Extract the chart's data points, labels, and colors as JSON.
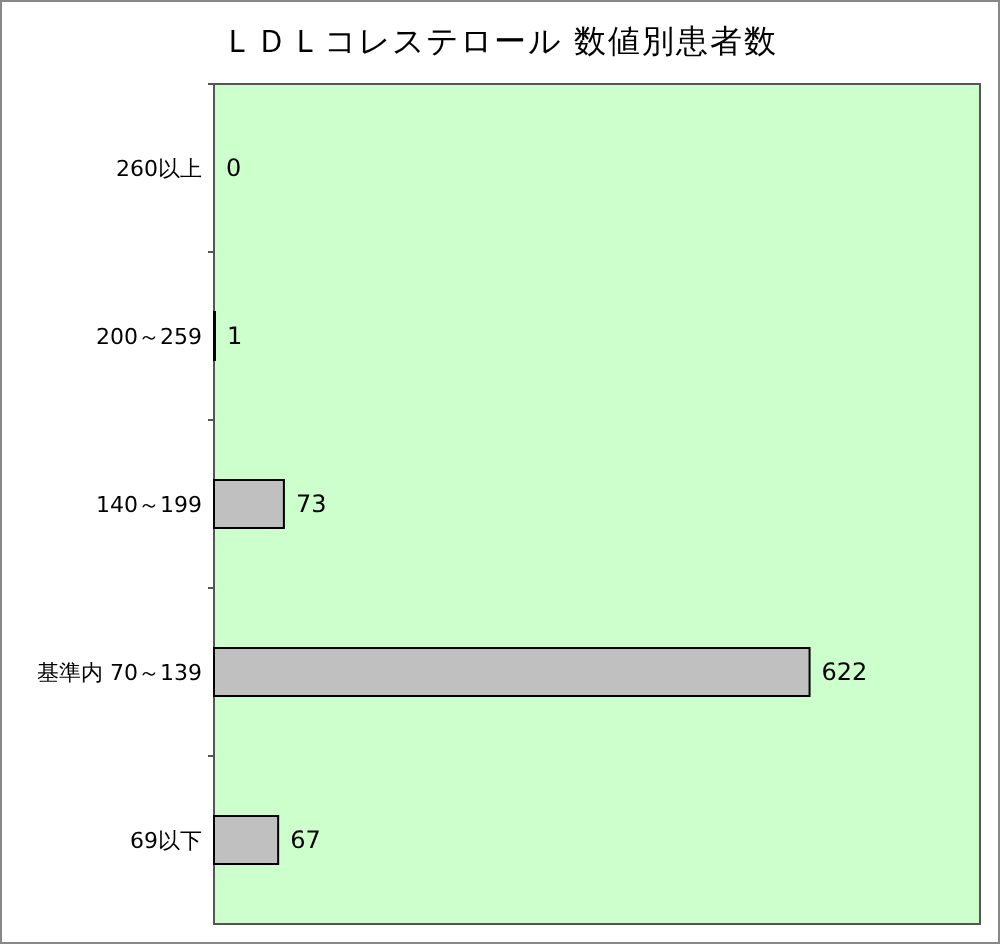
{
  "chart_data": {
    "type": "bar",
    "orientation": "horizontal",
    "title": "ＬＤＬコレステロール 数値別患者数",
    "categories": [
      "260以上",
      "200～259",
      "140～199",
      "基準内 70～139",
      "69以下"
    ],
    "values": [
      0,
      1,
      73,
      622,
      67
    ],
    "color": "#c0c0c0",
    "xlim": [
      0,
      800
    ],
    "data_labels": true
  }
}
